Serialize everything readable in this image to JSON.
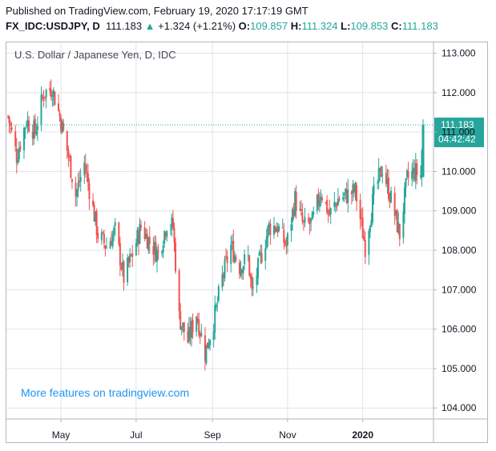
{
  "published_line": "Published on TradingView.com, February 19, 2020 17:17:19 GMT",
  "header": {
    "symbol": "FX_IDC:USDJPY, D",
    "last": "111.183",
    "change_arrow": "▲",
    "change": "+1.324 (+1.21%)",
    "o_label": "O:",
    "o_value": "109.857",
    "h_label": "H:",
    "h_value": "111.324",
    "l_label": "L:",
    "l_value": "109.853",
    "c_label": "C:",
    "c_value": "111.183"
  },
  "promo_text": "More features on tradingview.com",
  "colors": {
    "up": "#26a69a",
    "down": "#ef5350",
    "grid": "#e1e3eb",
    "axis": "#b2b5be",
    "promo": "#2196f3"
  },
  "chart_data": {
    "type": "candlestick",
    "title": "U.S. Dollar / Japanese Yen, D, IDC",
    "y_ticks": [
      "113.000",
      "112.000",
      "111.000",
      "110.000",
      "109.000",
      "108.000",
      "107.000",
      "106.000",
      "105.000",
      "104.000"
    ],
    "y_tick_values": [
      113,
      112,
      111,
      110,
      109,
      108,
      107,
      106,
      105,
      104
    ],
    "x_ticks": [
      "May",
      "Jul",
      "Sep",
      "Nov",
      "2020"
    ],
    "x_tick_bold": [
      false,
      false,
      false,
      false,
      true
    ],
    "ylim": [
      103.7,
      113.3
    ],
    "last_price": 111.183,
    "last_price_label": "111.183",
    "countdown": "04:42:42",
    "close_path": [
      [
        "2019-03-19",
        111.4
      ],
      [
        "2019-03-26",
        110.4
      ],
      [
        "2019-04-03",
        111.3
      ],
      [
        "2019-04-10",
        111.0
      ],
      [
        "2019-04-17",
        112.0
      ],
      [
        "2019-04-24",
        112.1
      ],
      [
        "2019-04-30",
        111.4
      ],
      [
        "2019-05-07",
        110.4
      ],
      [
        "2019-05-13",
        109.4
      ],
      [
        "2019-05-20",
        110.2
      ],
      [
        "2019-05-31",
        108.4
      ],
      [
        "2019-06-07",
        108.1
      ],
      [
        "2019-06-14",
        108.5
      ],
      [
        "2019-06-21",
        107.3
      ],
      [
        "2019-06-28",
        107.9
      ],
      [
        "2019-07-05",
        108.6
      ],
      [
        "2019-07-12",
        108.2
      ],
      [
        "2019-07-19",
        107.9
      ],
      [
        "2019-07-26",
        108.7
      ],
      [
        "2019-07-31",
        108.6
      ],
      [
        "2019-08-05",
        106.3
      ],
      [
        "2019-08-12",
        105.7
      ],
      [
        "2019-08-19",
        106.4
      ],
      [
        "2019-08-26",
        105.4
      ],
      [
        "2019-09-02",
        106.2
      ],
      [
        "2019-09-09",
        107.3
      ],
      [
        "2019-09-16",
        108.1
      ],
      [
        "2019-09-23",
        107.6
      ],
      [
        "2019-09-30",
        107.8
      ],
      [
        "2019-10-03",
        106.9
      ],
      [
        "2019-10-10",
        107.8
      ],
      [
        "2019-10-17",
        108.6
      ],
      [
        "2019-10-24",
        108.6
      ],
      [
        "2019-10-31",
        108.1
      ],
      [
        "2019-11-07",
        109.3
      ],
      [
        "2019-11-14",
        108.6
      ],
      [
        "2019-11-21",
        108.7
      ],
      [
        "2019-11-28",
        109.5
      ],
      [
        "2019-12-05",
        108.9
      ],
      [
        "2019-12-12",
        109.3
      ],
      [
        "2019-12-19",
        109.4
      ],
      [
        "2019-12-26",
        109.5
      ],
      [
        "2020-01-03",
        108.1
      ],
      [
        "2020-01-10",
        109.4
      ],
      [
        "2020-01-17",
        110.1
      ],
      [
        "2020-01-24",
        109.3
      ],
      [
        "2020-01-31",
        108.4
      ],
      [
        "2020-02-06",
        109.8
      ],
      [
        "2020-02-12",
        110.0
      ],
      [
        "2020-02-17",
        109.9
      ],
      [
        "2020-02-19",
        111.183
      ]
    ]
  }
}
